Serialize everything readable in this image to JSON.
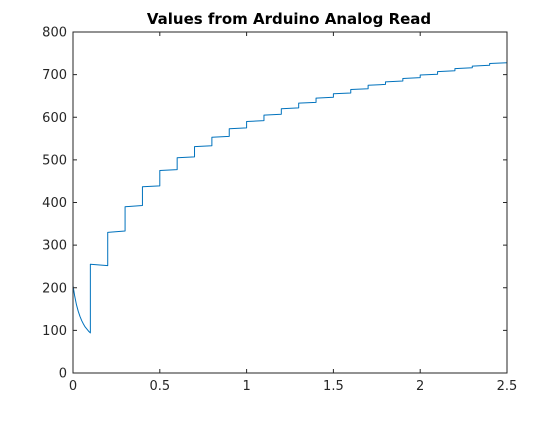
{
  "chart_data": {
    "type": "line",
    "title": "Values from Arduino Analog Read",
    "xlabel": "",
    "ylabel": "",
    "xlim": [
      0,
      2.5
    ],
    "ylim": [
      0,
      800
    ],
    "xticks": [
      0,
      0.5,
      1,
      1.5,
      2,
      2.5
    ],
    "xtick_labels": [
      "0",
      "0.5",
      "1",
      "1.5",
      "2",
      "2.5"
    ],
    "yticks": [
      0,
      100,
      200,
      300,
      400,
      500,
      600,
      700,
      800
    ],
    "ytick_labels": [
      "0",
      "100",
      "200",
      "300",
      "400",
      "500",
      "600",
      "700",
      "800"
    ],
    "grid": false,
    "box": true,
    "line_color": "#0072bd",
    "series": [
      {
        "x": [
          0,
          0.01,
          0.02,
          0.03,
          0.04,
          0.05,
          0.06,
          0.07,
          0.08,
          0.09,
          0.1,
          0.1,
          0.2,
          0.2,
          0.3,
          0.3,
          0.4,
          0.4,
          0.5,
          0.5,
          0.6,
          0.6,
          0.7,
          0.7,
          0.8,
          0.8,
          0.9,
          0.9,
          1.0,
          1.0,
          1.1,
          1.1,
          1.2,
          1.2,
          1.3,
          1.3,
          1.4,
          1.4,
          1.5,
          1.5,
          1.6,
          1.6,
          1.7,
          1.7,
          1.8,
          1.8,
          1.9,
          1.9,
          2.0,
          2.0,
          2.1,
          2.1,
          2.2,
          2.2,
          2.3,
          2.3,
          2.4,
          2.4,
          2.5
        ],
        "y": [
          205,
          180,
          160,
          145,
          133,
          123,
          115,
          108,
          103,
          98,
          94,
          255,
          252,
          330,
          333,
          390,
          393,
          437,
          439,
          475,
          477,
          505,
          507,
          531,
          533,
          553,
          555,
          573,
          575,
          590,
          592,
          605,
          607,
          620,
          622,
          633,
          635,
          645,
          647,
          655,
          657,
          665,
          667,
          675,
          677,
          683,
          685,
          691,
          693,
          699,
          701,
          707,
          709,
          714,
          716,
          720,
          722,
          726,
          728
        ]
      }
    ]
  }
}
